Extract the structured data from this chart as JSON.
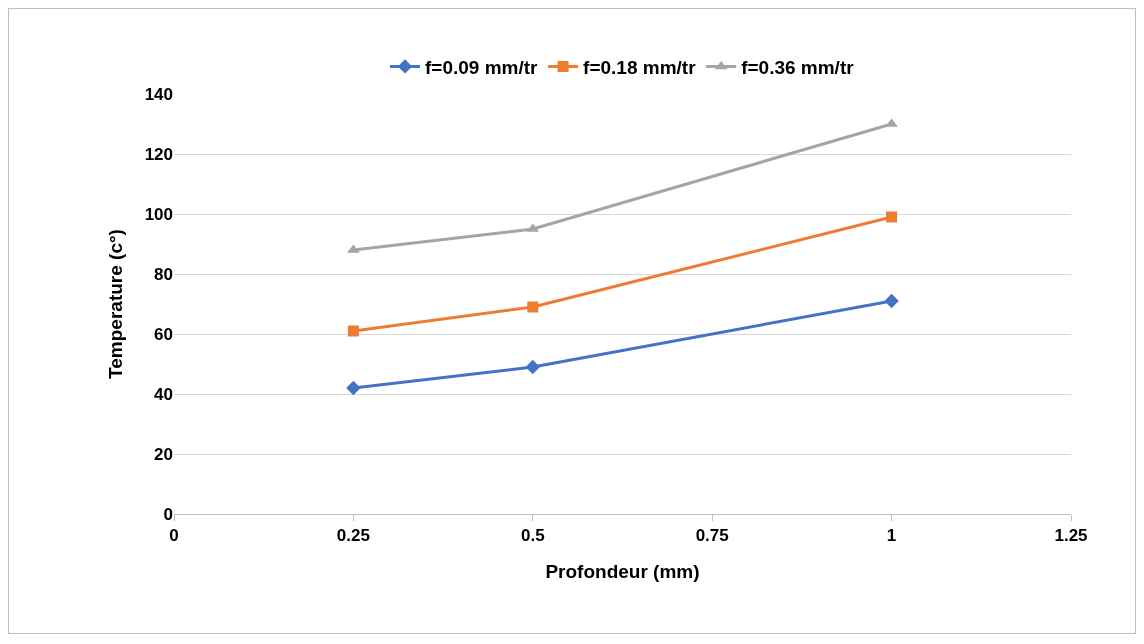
{
  "chart_data": {
    "type": "line",
    "xlabel": "Profondeur (mm)",
    "ylabel": "Temperature (c°)",
    "x": [
      0.25,
      0.5,
      1
    ],
    "series": [
      {
        "name": "f=0.09 mm/tr",
        "color": "#4472c4",
        "marker": "diamond",
        "values": [
          42,
          49,
          71
        ]
      },
      {
        "name": "f=0.18 mm/tr",
        "color": "#ed7d31",
        "marker": "square",
        "values": [
          61,
          69,
          99
        ]
      },
      {
        "name": "f=0.36 mm/tr",
        "color": "#a5a5a5",
        "marker": "triangle",
        "values": [
          88,
          95,
          130
        ]
      }
    ],
    "xlim": [
      0,
      1.25
    ],
    "xticks": [
      0,
      0.25,
      0.5,
      0.75,
      1,
      1.25
    ],
    "ylim": [
      0,
      140
    ],
    "yticks": [
      0,
      20,
      40,
      60,
      80,
      100,
      120,
      140
    ],
    "grid": "y",
    "legend": "top",
    "line_style": "solid"
  }
}
